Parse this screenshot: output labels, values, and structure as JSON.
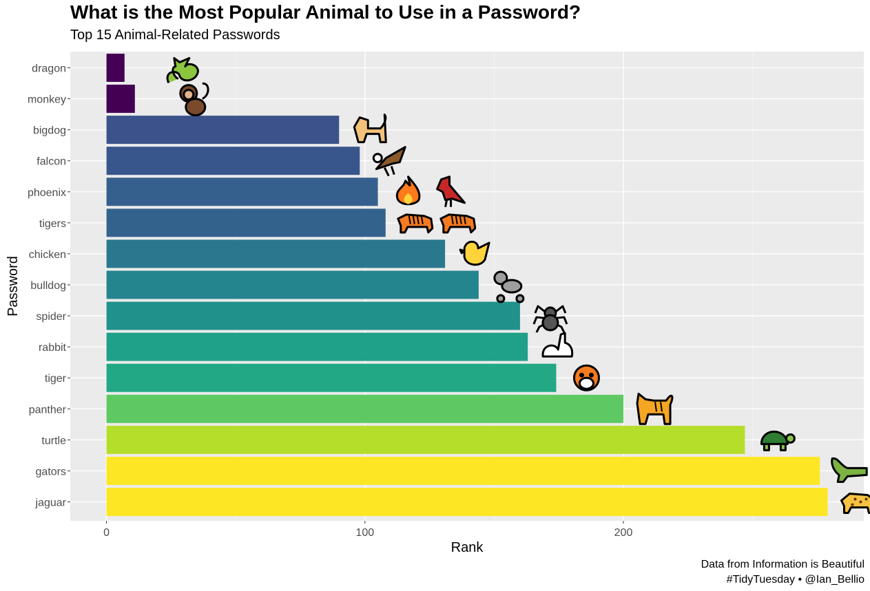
{
  "title": "What is the Most Popular Animal to Use in a Password?",
  "subtitle": "Top 15 Animal-Related Passwords",
  "caption": {
    "line1": "Data from Information is Beautiful",
    "line2": "#TidyTuesday • @Ian_Bellio"
  },
  "chart_data": {
    "type": "bar",
    "orientation": "horizontal",
    "title": "What is the Most Popular Animal to Use in a Password?",
    "subtitle": "Top 15 Animal-Related Passwords",
    "xlabel": "Rank",
    "ylabel": "Password",
    "xlim": [
      -14,
      293
    ],
    "xticks": [
      0,
      100,
      200
    ],
    "grid": true,
    "legend": "none",
    "categories": [
      "dragon",
      "monkey",
      "bigdog",
      "falcon",
      "phoenix",
      "tigers",
      "chicken",
      "bulldog",
      "spider",
      "rabbit",
      "tiger",
      "panther",
      "turtle",
      "gators",
      "jaguar"
    ],
    "values": [
      7,
      11,
      90,
      98,
      105,
      108,
      131,
      144,
      160,
      163,
      174,
      200,
      247,
      276,
      279
    ],
    "colors": [
      "#440154",
      "#440154",
      "#3b528b",
      "#39568c",
      "#355f8d",
      "#33638d",
      "#2a788e",
      "#25858e",
      "#21918c",
      "#1fa088",
      "#22a884",
      "#5ec962",
      "#b5de2b",
      "#fde725",
      "#fde725"
    ],
    "emoji": [
      [
        "dragon"
      ],
      [
        "monkey"
      ],
      [
        "dog"
      ],
      [
        "eagle"
      ],
      [
        "fire",
        "bird"
      ],
      [
        "tiger",
        "tiger"
      ],
      [
        "chick"
      ],
      [
        "poodle"
      ],
      [
        "spider"
      ],
      [
        "rabbit"
      ],
      [
        "tiger-face"
      ],
      [
        "cat"
      ],
      [
        "turtle"
      ],
      [
        "crocodile"
      ],
      [
        "leopard"
      ]
    ]
  }
}
